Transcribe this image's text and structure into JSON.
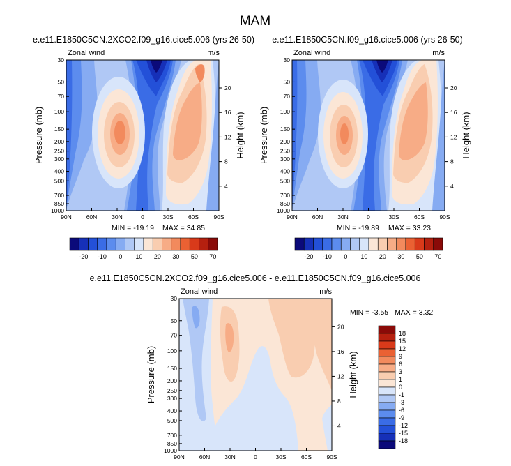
{
  "page_title": "MAM",
  "chart_data": [
    {
      "type": "contour",
      "title": "e.e11.E1850C5CN.2XCO2.f09_g16.cice5.006 (yrs 26-50)",
      "left_label": "Zonal wind",
      "right_label": "m/s",
      "xlabel": "",
      "ylabel": "Pressure (mb)",
      "ylabel_right": "Height (km)",
      "x_ticks": [
        "90N",
        "60N",
        "30N",
        "0",
        "30S",
        "60S",
        "90S"
      ],
      "y_ticks": [
        "30",
        "50",
        "70",
        "100",
        "150",
        "200",
        "250",
        "300",
        "400",
        "500",
        "700",
        "850",
        "1000"
      ],
      "height_ticks": [
        "20",
        "16",
        "12",
        "8",
        "4"
      ],
      "min_label": "MIN = -19.19",
      "max_label": "MAX = 34.85",
      "levels": [
        -20,
        -10,
        0,
        10,
        20,
        30,
        50,
        70
      ]
    },
    {
      "type": "contour",
      "title": "e.e11.E1850C5CN.f09_g16.cice5.006 (yrs 26-50)",
      "left_label": "Zonal wind",
      "right_label": "m/s",
      "xlabel": "",
      "ylabel": "Pressure (mb)",
      "ylabel_right": "Height (km)",
      "x_ticks": [
        "90N",
        "60N",
        "30N",
        "0",
        "30S",
        "60S",
        "90S"
      ],
      "y_ticks": [
        "30",
        "50",
        "70",
        "100",
        "150",
        "200",
        "250",
        "300",
        "400",
        "500",
        "700",
        "850",
        "1000"
      ],
      "height_ticks": [
        "20",
        "16",
        "12",
        "8",
        "4"
      ],
      "min_label": "MIN = -19.89",
      "max_label": "MAX = 33.23",
      "levels": [
        -20,
        -10,
        0,
        10,
        20,
        30,
        50,
        70
      ]
    },
    {
      "type": "contour",
      "title": "e.e11.E1850C5CN.2XCO2.f09_g16.cice5.006 - e.e11.E1850C5CN.f09_g16.cice5.006",
      "left_label": "Zonal wind",
      "right_label": "m/s",
      "xlabel": "",
      "ylabel": "Pressure (mb)",
      "ylabel_right": "Height (km)",
      "x_ticks": [
        "90N",
        "60N",
        "30N",
        "0",
        "30S",
        "60S",
        "90S"
      ],
      "y_ticks": [
        "30",
        "50",
        "70",
        "100",
        "150",
        "200",
        "250",
        "300",
        "400",
        "500",
        "700",
        "850",
        "1000"
      ],
      "height_ticks": [
        "20",
        "16",
        "12",
        "8",
        "4"
      ],
      "min_label": "MIN =  -3.55",
      "max_label": "MAX =   3.32",
      "levels": [
        -18,
        -15,
        -12,
        -9,
        -6,
        -3,
        -1,
        0,
        1,
        3,
        6,
        9,
        12,
        15,
        18
      ]
    }
  ],
  "colors": {
    "abs_scale": [
      "#0b0a7a",
      "#1630b8",
      "#2350d8",
      "#3a6ce6",
      "#5c8cee",
      "#86abf2",
      "#b0c8f5",
      "#d8e5fa",
      "#fbe6d6",
      "#f9cdb0",
      "#f7ac86",
      "#f28a5d",
      "#ea6133",
      "#d93a1a",
      "#b5200f",
      "#8a0a08"
    ],
    "diff_scale": [
      "#0b0a7a",
      "#1630b8",
      "#2350d8",
      "#3a6ce6",
      "#5c8cee",
      "#86abf2",
      "#b0c8f5",
      "#d8e5fa",
      "#fbe6d6",
      "#f9cdb0",
      "#f7ac86",
      "#f28a5d",
      "#ea6133",
      "#d93a1a",
      "#b5200f",
      "#8a0a08"
    ]
  }
}
